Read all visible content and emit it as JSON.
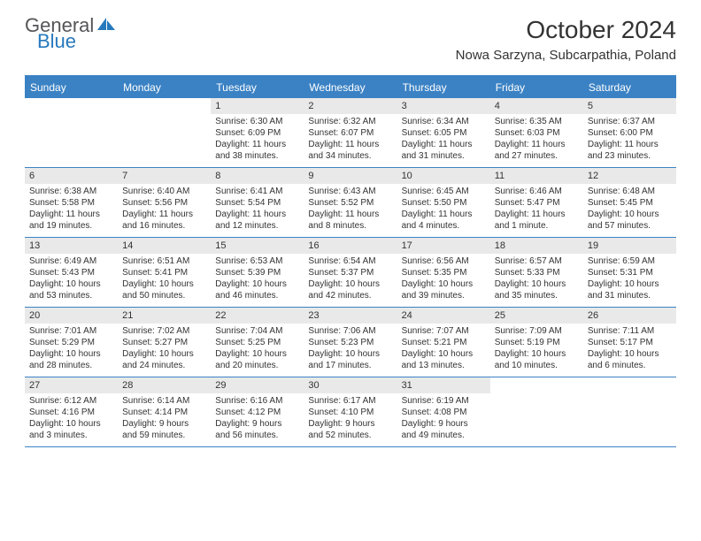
{
  "logo": {
    "word1": "General",
    "word2": "Blue",
    "shape_color": "#2779bd",
    "word1_color": "#555558"
  },
  "title": "October 2024",
  "location": "Nowa Sarzyna, Subcarpathia, Poland",
  "colors": {
    "header_bg": "#3b82c4",
    "daynum_bg": "#e9e9e9",
    "text": "#333333",
    "border": "#3b82c4"
  },
  "day_names": [
    "Sunday",
    "Monday",
    "Tuesday",
    "Wednesday",
    "Thursday",
    "Friday",
    "Saturday"
  ],
  "weeks": [
    [
      null,
      null,
      {
        "n": "1",
        "sr": "Sunrise: 6:30 AM",
        "ss": "Sunset: 6:09 PM",
        "d1": "Daylight: 11 hours",
        "d2": "and 38 minutes."
      },
      {
        "n": "2",
        "sr": "Sunrise: 6:32 AM",
        "ss": "Sunset: 6:07 PM",
        "d1": "Daylight: 11 hours",
        "d2": "and 34 minutes."
      },
      {
        "n": "3",
        "sr": "Sunrise: 6:34 AM",
        "ss": "Sunset: 6:05 PM",
        "d1": "Daylight: 11 hours",
        "d2": "and 31 minutes."
      },
      {
        "n": "4",
        "sr": "Sunrise: 6:35 AM",
        "ss": "Sunset: 6:03 PM",
        "d1": "Daylight: 11 hours",
        "d2": "and 27 minutes."
      },
      {
        "n": "5",
        "sr": "Sunrise: 6:37 AM",
        "ss": "Sunset: 6:00 PM",
        "d1": "Daylight: 11 hours",
        "d2": "and 23 minutes."
      }
    ],
    [
      {
        "n": "6",
        "sr": "Sunrise: 6:38 AM",
        "ss": "Sunset: 5:58 PM",
        "d1": "Daylight: 11 hours",
        "d2": "and 19 minutes."
      },
      {
        "n": "7",
        "sr": "Sunrise: 6:40 AM",
        "ss": "Sunset: 5:56 PM",
        "d1": "Daylight: 11 hours",
        "d2": "and 16 minutes."
      },
      {
        "n": "8",
        "sr": "Sunrise: 6:41 AM",
        "ss": "Sunset: 5:54 PM",
        "d1": "Daylight: 11 hours",
        "d2": "and 12 minutes."
      },
      {
        "n": "9",
        "sr": "Sunrise: 6:43 AM",
        "ss": "Sunset: 5:52 PM",
        "d1": "Daylight: 11 hours",
        "d2": "and 8 minutes."
      },
      {
        "n": "10",
        "sr": "Sunrise: 6:45 AM",
        "ss": "Sunset: 5:50 PM",
        "d1": "Daylight: 11 hours",
        "d2": "and 4 minutes."
      },
      {
        "n": "11",
        "sr": "Sunrise: 6:46 AM",
        "ss": "Sunset: 5:47 PM",
        "d1": "Daylight: 11 hours",
        "d2": "and 1 minute."
      },
      {
        "n": "12",
        "sr": "Sunrise: 6:48 AM",
        "ss": "Sunset: 5:45 PM",
        "d1": "Daylight: 10 hours",
        "d2": "and 57 minutes."
      }
    ],
    [
      {
        "n": "13",
        "sr": "Sunrise: 6:49 AM",
        "ss": "Sunset: 5:43 PM",
        "d1": "Daylight: 10 hours",
        "d2": "and 53 minutes."
      },
      {
        "n": "14",
        "sr": "Sunrise: 6:51 AM",
        "ss": "Sunset: 5:41 PM",
        "d1": "Daylight: 10 hours",
        "d2": "and 50 minutes."
      },
      {
        "n": "15",
        "sr": "Sunrise: 6:53 AM",
        "ss": "Sunset: 5:39 PM",
        "d1": "Daylight: 10 hours",
        "d2": "and 46 minutes."
      },
      {
        "n": "16",
        "sr": "Sunrise: 6:54 AM",
        "ss": "Sunset: 5:37 PM",
        "d1": "Daylight: 10 hours",
        "d2": "and 42 minutes."
      },
      {
        "n": "17",
        "sr": "Sunrise: 6:56 AM",
        "ss": "Sunset: 5:35 PM",
        "d1": "Daylight: 10 hours",
        "d2": "and 39 minutes."
      },
      {
        "n": "18",
        "sr": "Sunrise: 6:57 AM",
        "ss": "Sunset: 5:33 PM",
        "d1": "Daylight: 10 hours",
        "d2": "and 35 minutes."
      },
      {
        "n": "19",
        "sr": "Sunrise: 6:59 AM",
        "ss": "Sunset: 5:31 PM",
        "d1": "Daylight: 10 hours",
        "d2": "and 31 minutes."
      }
    ],
    [
      {
        "n": "20",
        "sr": "Sunrise: 7:01 AM",
        "ss": "Sunset: 5:29 PM",
        "d1": "Daylight: 10 hours",
        "d2": "and 28 minutes."
      },
      {
        "n": "21",
        "sr": "Sunrise: 7:02 AM",
        "ss": "Sunset: 5:27 PM",
        "d1": "Daylight: 10 hours",
        "d2": "and 24 minutes."
      },
      {
        "n": "22",
        "sr": "Sunrise: 7:04 AM",
        "ss": "Sunset: 5:25 PM",
        "d1": "Daylight: 10 hours",
        "d2": "and 20 minutes."
      },
      {
        "n": "23",
        "sr": "Sunrise: 7:06 AM",
        "ss": "Sunset: 5:23 PM",
        "d1": "Daylight: 10 hours",
        "d2": "and 17 minutes."
      },
      {
        "n": "24",
        "sr": "Sunrise: 7:07 AM",
        "ss": "Sunset: 5:21 PM",
        "d1": "Daylight: 10 hours",
        "d2": "and 13 minutes."
      },
      {
        "n": "25",
        "sr": "Sunrise: 7:09 AM",
        "ss": "Sunset: 5:19 PM",
        "d1": "Daylight: 10 hours",
        "d2": "and 10 minutes."
      },
      {
        "n": "26",
        "sr": "Sunrise: 7:11 AM",
        "ss": "Sunset: 5:17 PM",
        "d1": "Daylight: 10 hours",
        "d2": "and 6 minutes."
      }
    ],
    [
      {
        "n": "27",
        "sr": "Sunrise: 6:12 AM",
        "ss": "Sunset: 4:16 PM",
        "d1": "Daylight: 10 hours",
        "d2": "and 3 minutes."
      },
      {
        "n": "28",
        "sr": "Sunrise: 6:14 AM",
        "ss": "Sunset: 4:14 PM",
        "d1": "Daylight: 9 hours",
        "d2": "and 59 minutes."
      },
      {
        "n": "29",
        "sr": "Sunrise: 6:16 AM",
        "ss": "Sunset: 4:12 PM",
        "d1": "Daylight: 9 hours",
        "d2": "and 56 minutes."
      },
      {
        "n": "30",
        "sr": "Sunrise: 6:17 AM",
        "ss": "Sunset: 4:10 PM",
        "d1": "Daylight: 9 hours",
        "d2": "and 52 minutes."
      },
      {
        "n": "31",
        "sr": "Sunrise: 6:19 AM",
        "ss": "Sunset: 4:08 PM",
        "d1": "Daylight: 9 hours",
        "d2": "and 49 minutes."
      },
      null,
      null
    ]
  ]
}
